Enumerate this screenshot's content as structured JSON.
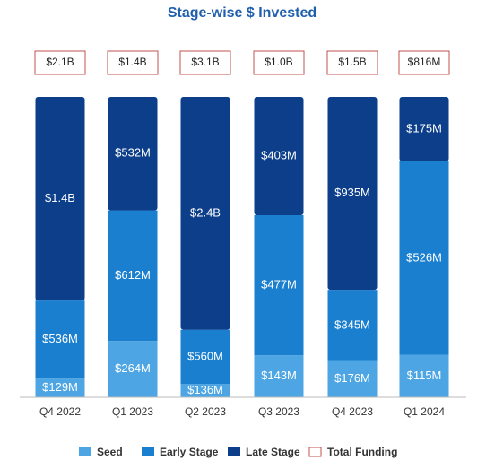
{
  "chart_data": {
    "type": "bar",
    "stacked": "percent",
    "title": "Stage-wise $ Invested",
    "categories": [
      "Q4 2022",
      "Q1 2023",
      "Q2 2023",
      "Q3 2023",
      "Q4 2023",
      "Q1 2024"
    ],
    "series": [
      {
        "name": "Seed",
        "color": "#4da6e3",
        "values": [
          129,
          264,
          136,
          143,
          176,
          115
        ],
        "value_labels": [
          "$129M",
          "$264M",
          "$136M",
          "$143M",
          "$176M",
          "$115M"
        ]
      },
      {
        "name": "Early Stage",
        "color": "#1a7fcf",
        "values": [
          536,
          612,
          560,
          477,
          345,
          526
        ],
        "value_labels": [
          "$536M",
          "$612M",
          "$560M",
          "$477M",
          "$345M",
          "$526M"
        ]
      },
      {
        "name": "Late Stage",
        "color": "#0c3e8a",
        "values": [
          1400,
          532,
          2400,
          403,
          935,
          175
        ],
        "value_labels": [
          "$1.4B",
          "$532M",
          "$2.4B",
          "$403M",
          "$935M",
          "$175M"
        ]
      }
    ],
    "totals": {
      "name": "Total Funding",
      "color": "#c0504d",
      "values": [
        2100,
        1400,
        3100,
        1000,
        1500,
        816
      ],
      "value_labels": [
        "$2.1B",
        "$1.4B",
        "$3.1B",
        "$1.0B",
        "$1.5B",
        "$816M"
      ]
    }
  }
}
